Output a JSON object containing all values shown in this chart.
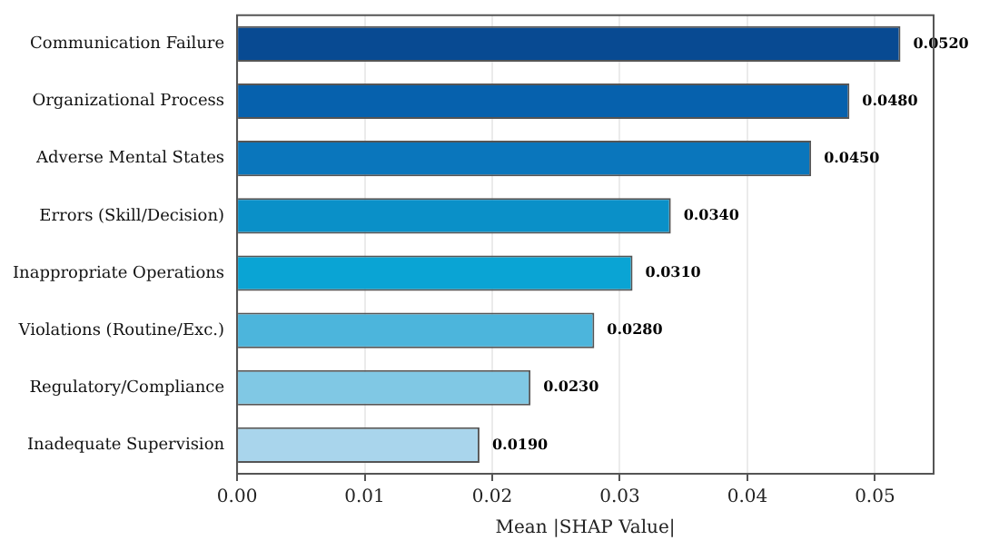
{
  "chart_data": {
    "type": "bar",
    "orientation": "horizontal",
    "xlabel": "Mean |SHAP Value|",
    "categories": [
      "Communication Failure",
      "Organizational Process",
      "Adverse Mental States",
      "Errors (Skill/Decision)",
      "Inappropriate Operations",
      "Violations (Routine/Exc.)",
      "Regulatory/Compliance",
      "Inadequate Supervision"
    ],
    "values": [
      0.052,
      0.048,
      0.045,
      0.034,
      0.031,
      0.028,
      0.023,
      0.019
    ],
    "colors": [
      "#084a92",
      "#0661ad",
      "#0a76bc",
      "#0a90c8",
      "#0aa4d4",
      "#4cb5dc",
      "#80c8e4",
      "#a9d5ec"
    ],
    "value_labels": [
      "0.0520",
      "0.0480",
      "0.0450",
      "0.0340",
      "0.0310",
      "0.0280",
      "0.0230",
      "0.0190"
    ],
    "xlim": [
      0,
      0.0546
    ],
    "xticks": [
      {
        "value": 0,
        "label": "0.00"
      },
      {
        "value": 0.01,
        "label": "0.01"
      },
      {
        "value": 0.02,
        "label": "0.02"
      },
      {
        "value": 0.03,
        "label": "0.03"
      },
      {
        "value": 0.04,
        "label": "0.04"
      },
      {
        "value": 0.05,
        "label": "0.05"
      }
    ],
    "grid": "x"
  }
}
